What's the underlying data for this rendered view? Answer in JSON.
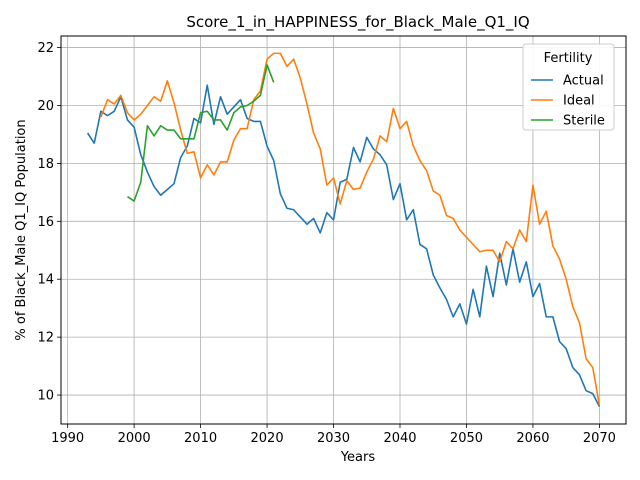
{
  "chart_data": {
    "type": "line",
    "title": "Score_1_in_HAPPINESS_for_Black_Male_Q1_IQ",
    "xlabel": "Years",
    "ylabel": "% of Black_Male Q1_IQ Population",
    "xlim": [
      1989,
      2074
    ],
    "ylim": [
      9.0,
      22.4
    ],
    "xticks": [
      1990,
      2000,
      2010,
      2020,
      2030,
      2040,
      2050,
      2060,
      2070
    ],
    "yticks": [
      10,
      12,
      14,
      16,
      18,
      20,
      22
    ],
    "grid": true,
    "legend": {
      "title": "Fertility",
      "position": "top-right"
    },
    "series": [
      {
        "name": "Actual",
        "color": "#1f77b4",
        "x": [
          1993,
          1994,
          1995,
          1996,
          1997,
          1998,
          1999,
          2000,
          2001,
          2002,
          2003,
          2004,
          2005,
          2006,
          2007,
          2008,
          2009,
          2010,
          2011,
          2012,
          2013,
          2014,
          2015,
          2016,
          2017,
          2018,
          2019,
          2020,
          2021,
          2022,
          2023,
          2024,
          2025,
          2026,
          2027,
          2028,
          2029,
          2030,
          2031,
          2032,
          2033,
          2034,
          2035,
          2036,
          2037,
          2038,
          2039,
          2040,
          2041,
          2042,
          2043,
          2044,
          2045,
          2046,
          2047,
          2048,
          2049,
          2050,
          2051,
          2052,
          2053,
          2054,
          2055,
          2056,
          2057,
          2058,
          2059,
          2060,
          2061,
          2062,
          2063,
          2064,
          2065,
          2066,
          2067,
          2068,
          2069,
          2070
        ],
        "y": [
          19.05,
          18.7,
          19.8,
          19.65,
          19.8,
          20.3,
          19.5,
          19.25,
          18.3,
          17.7,
          17.2,
          16.9,
          17.1,
          17.3,
          18.2,
          18.6,
          19.55,
          19.4,
          20.7,
          19.35,
          20.3,
          19.7,
          19.95,
          20.2,
          19.55,
          19.45,
          19.45,
          18.6,
          18.1,
          16.95,
          16.45,
          16.4,
          16.15,
          15.9,
          16.1,
          15.6,
          16.3,
          16.05,
          17.35,
          17.45,
          18.55,
          18.05,
          18.9,
          18.5,
          18.3,
          17.95,
          16.75,
          17.3,
          16.05,
          16.4,
          15.2,
          15.05,
          14.15,
          13.7,
          13.3,
          12.7,
          13.15,
          12.45,
          13.65,
          12.7,
          14.45,
          13.4,
          14.9,
          13.8,
          15.05,
          13.9,
          14.6,
          13.4,
          13.85,
          12.7,
          12.7,
          11.85,
          11.6,
          10.95,
          10.7,
          10.15,
          10.05,
          9.6
        ]
      },
      {
        "name": "Ideal",
        "color": "#ff7f0e",
        "x": [
          1995,
          1996,
          1997,
          1998,
          1999,
          2000,
          2001,
          2002,
          2003,
          2004,
          2005,
          2006,
          2007,
          2008,
          2009,
          2010,
          2011,
          2012,
          2013,
          2014,
          2015,
          2016,
          2017,
          2018,
          2019,
          2020,
          2021,
          2022,
          2023,
          2024,
          2025,
          2026,
          2027,
          2028,
          2029,
          2030,
          2031,
          2032,
          2033,
          2034,
          2035,
          2036,
          2037,
          2038,
          2039,
          2040,
          2041,
          2042,
          2043,
          2044,
          2045,
          2046,
          2047,
          2048,
          2049,
          2050,
          2051,
          2052,
          2053,
          2054,
          2055,
          2056,
          2057,
          2058,
          2059,
          2060,
          2061,
          2062,
          2063,
          2064,
          2065,
          2066,
          2067,
          2068,
          2069,
          2070
        ],
        "y": [
          19.6,
          20.2,
          20.05,
          20.35,
          19.75,
          19.5,
          19.7,
          20.0,
          20.3,
          20.15,
          20.85,
          20.1,
          19.15,
          18.35,
          18.4,
          17.5,
          17.95,
          17.6,
          18.05,
          18.05,
          18.8,
          19.2,
          19.2,
          20.2,
          20.5,
          21.6,
          21.8,
          21.8,
          21.35,
          21.6,
          20.95,
          20.05,
          19.05,
          18.5,
          17.25,
          17.5,
          16.6,
          17.4,
          17.1,
          17.15,
          17.7,
          18.15,
          18.95,
          18.75,
          19.9,
          19.2,
          19.45,
          18.6,
          18.1,
          17.75,
          17.05,
          16.9,
          16.2,
          16.1,
          15.7,
          15.45,
          15.2,
          14.95,
          15.0,
          15.0,
          14.6,
          15.3,
          15.05,
          15.7,
          15.3,
          17.25,
          15.9,
          16.35,
          15.15,
          14.7,
          14.0,
          13.05,
          12.5,
          11.25,
          10.95,
          9.65
        ]
      },
      {
        "name": "Sterile",
        "color": "#2ca02c",
        "x": [
          1999,
          2000,
          2001,
          2002,
          2003,
          2004,
          2005,
          2006,
          2007,
          2008,
          2009,
          2010,
          2011,
          2012,
          2013,
          2014,
          2015,
          2016,
          2017,
          2018,
          2019,
          2020,
          2021
        ],
        "y": [
          16.85,
          16.7,
          17.35,
          19.3,
          18.95,
          19.3,
          19.15,
          19.15,
          18.85,
          18.85,
          18.85,
          19.75,
          19.8,
          19.5,
          19.5,
          19.15,
          19.75,
          19.95,
          20.0,
          20.15,
          20.35,
          21.4,
          20.8
        ]
      }
    ]
  }
}
